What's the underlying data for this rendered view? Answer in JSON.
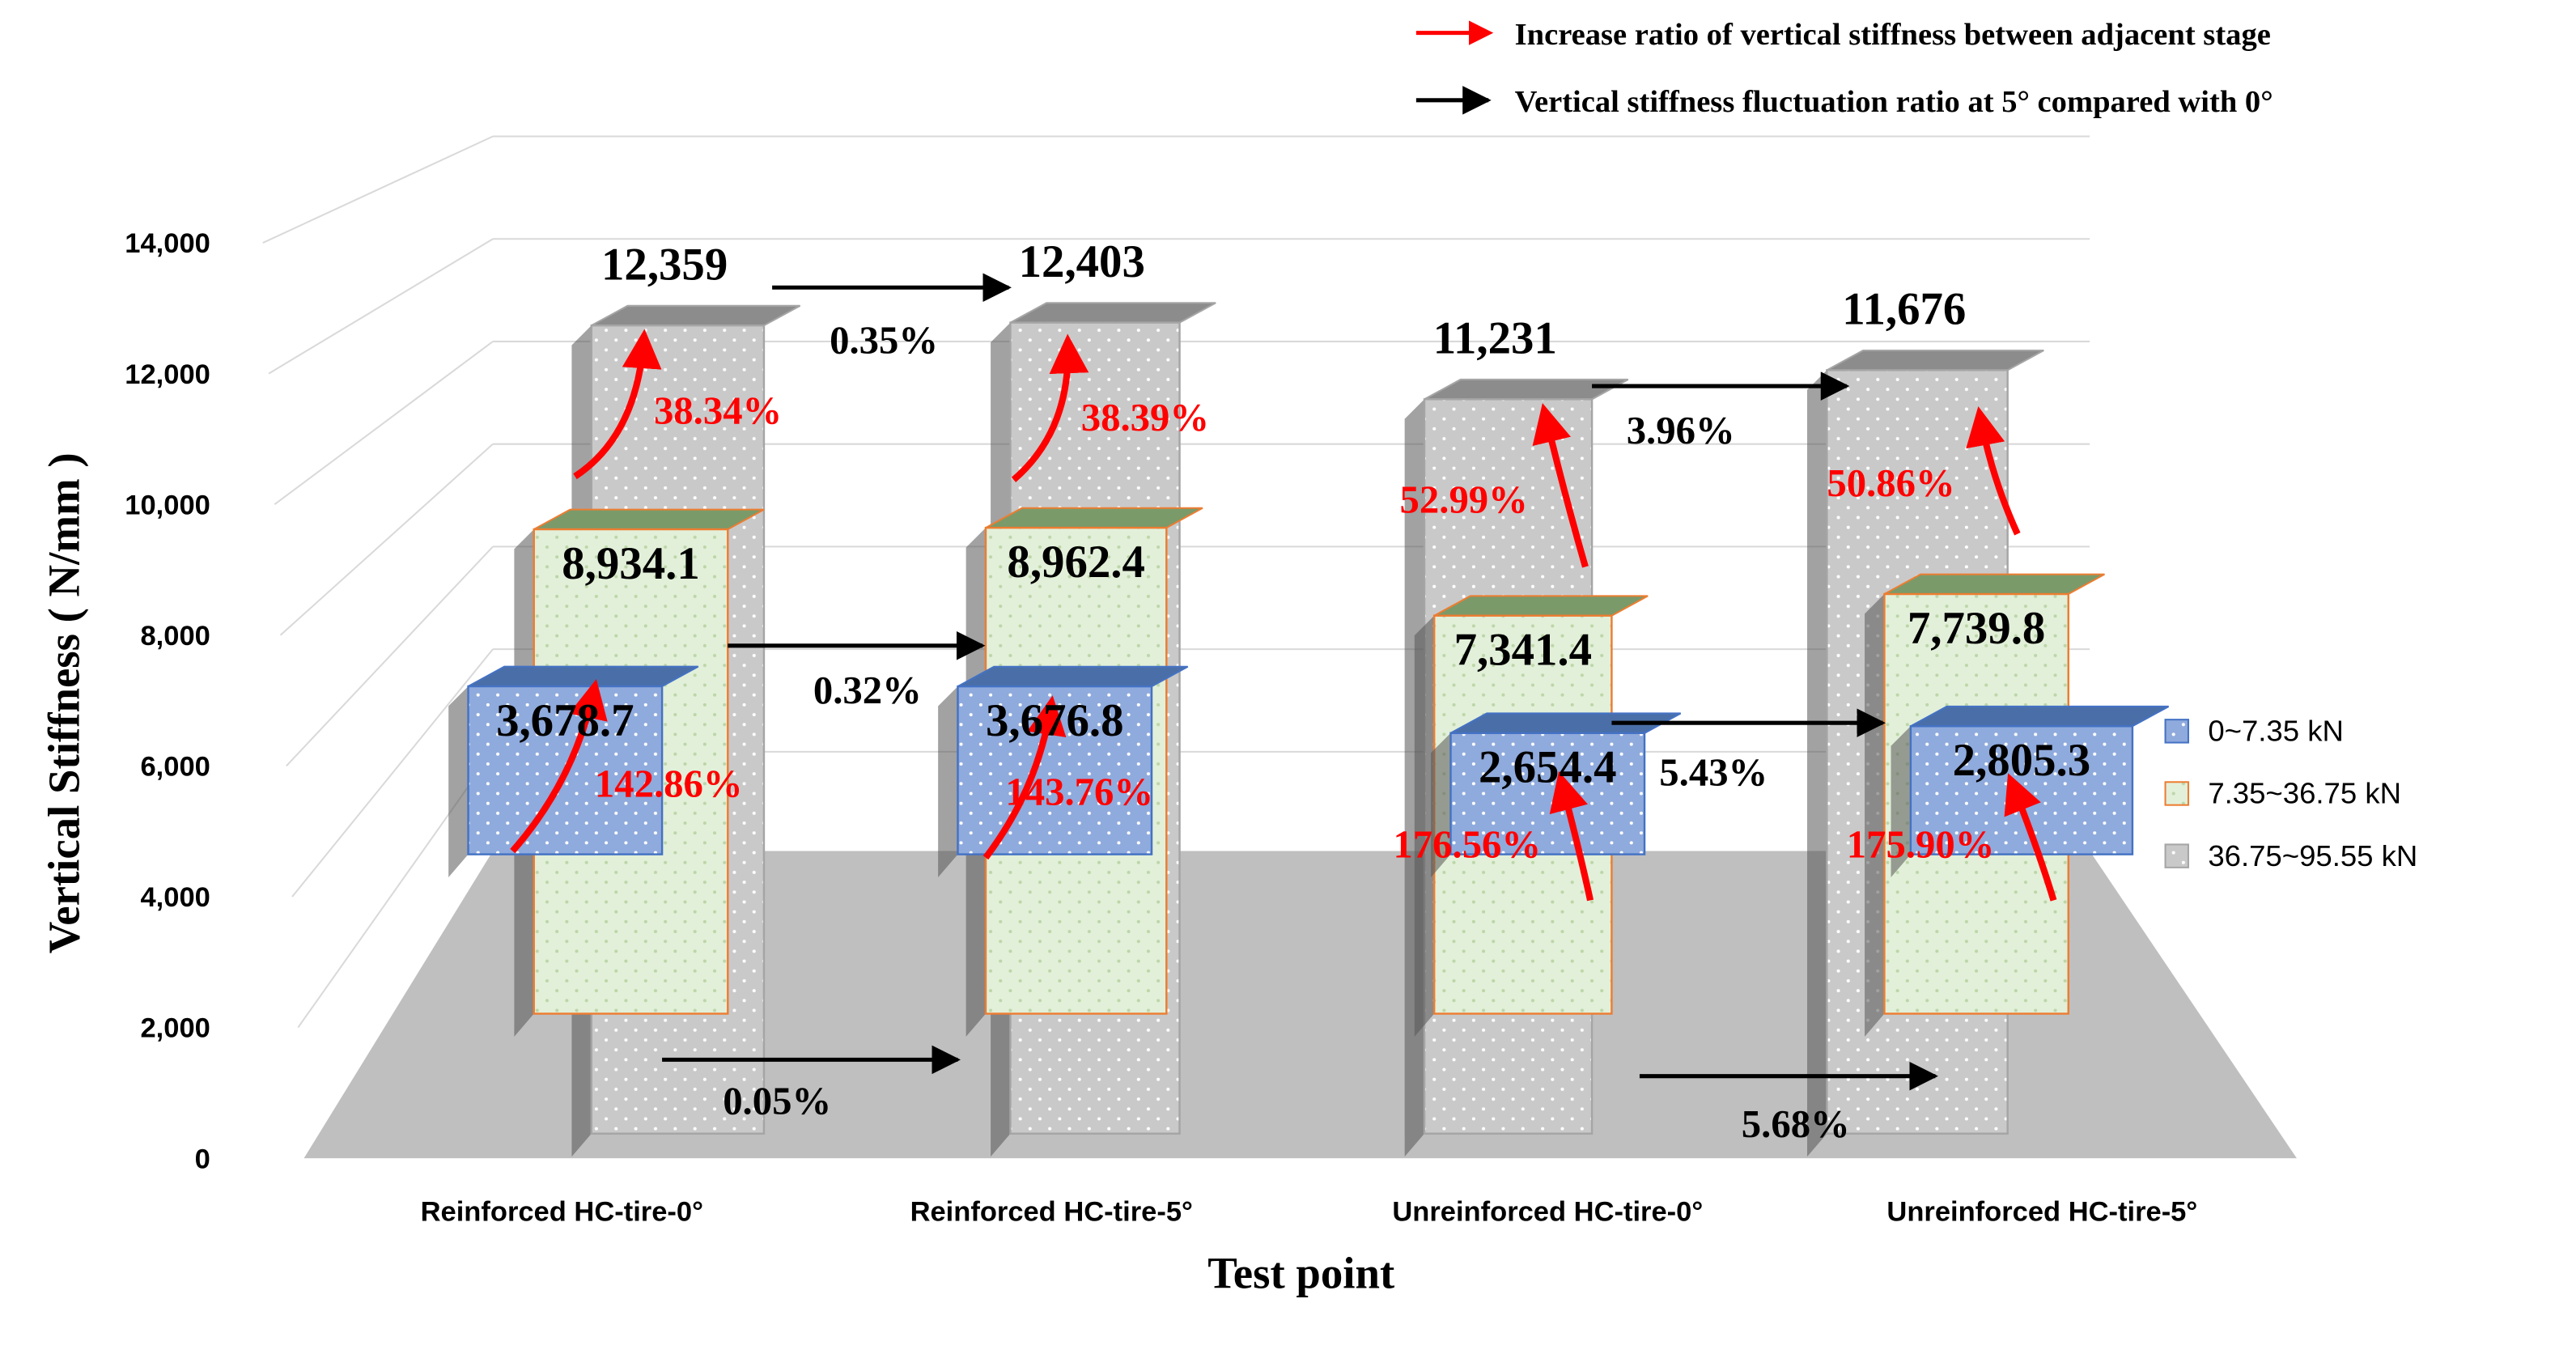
{
  "chart_data": {
    "type": "bar",
    "xlabel": "Test point",
    "ylabel": "Vertical Stiffness ( N/mm )",
    "ylim": [
      0,
      14000
    ],
    "yticks": [
      "0",
      "2,000",
      "4,000",
      "6,000",
      "8,000",
      "10,000",
      "12,000",
      "14,000"
    ],
    "categories": [
      "Reinforced HC-tire-0°",
      "Reinforced HC-tire-5°",
      "Unreinforced HC-tire-0°",
      "Unreinforced HC-tire-5°"
    ],
    "series": [
      {
        "name": "0~7.35 kN",
        "color": "#8faadc",
        "values": [
          3678.7,
          3676.8,
          2654.4,
          2805.3
        ],
        "labels": [
          "3,678.7",
          "3,676.8",
          "2,654.4",
          "2,805.3"
        ]
      },
      {
        "name": "7.35~36.75 kN",
        "color": "#e2f0d9",
        "values": [
          8934.1,
          8962.4,
          7341.4,
          7739.8
        ],
        "labels": [
          "8,934.1",
          "8,962.4",
          "7,341.4",
          "7,739.8"
        ]
      },
      {
        "name": "36.75~95.55 kN",
        "color": "#c9c9c9",
        "values": [
          12359,
          12403,
          11231,
          11676
        ],
        "labels": [
          "12,359",
          "12,403",
          "11,231",
          "11,676"
        ]
      }
    ],
    "stage_increase": [
      [
        "142.86%",
        "38.34%"
      ],
      [
        "143.76%",
        "38.39%"
      ],
      [
        "176.56%",
        "52.99%"
      ],
      [
        "175.90%",
        "50.86%"
      ]
    ],
    "fluctuation": {
      "reinforced": [
        "0.05%",
        "0.32%",
        "0.35%"
      ],
      "unreinforced": [
        "5.68%",
        "5.43%",
        "3.96%"
      ]
    },
    "annotation_legend": [
      {
        "text": "Increase ratio of vertical stiffness between adjacent stage",
        "color": "#ff0000"
      },
      {
        "text": "Vertical stiffness fluctuation ratio at 5° compared with 0°",
        "color": "#000000"
      }
    ],
    "legend_position": "right",
    "grid": true
  }
}
